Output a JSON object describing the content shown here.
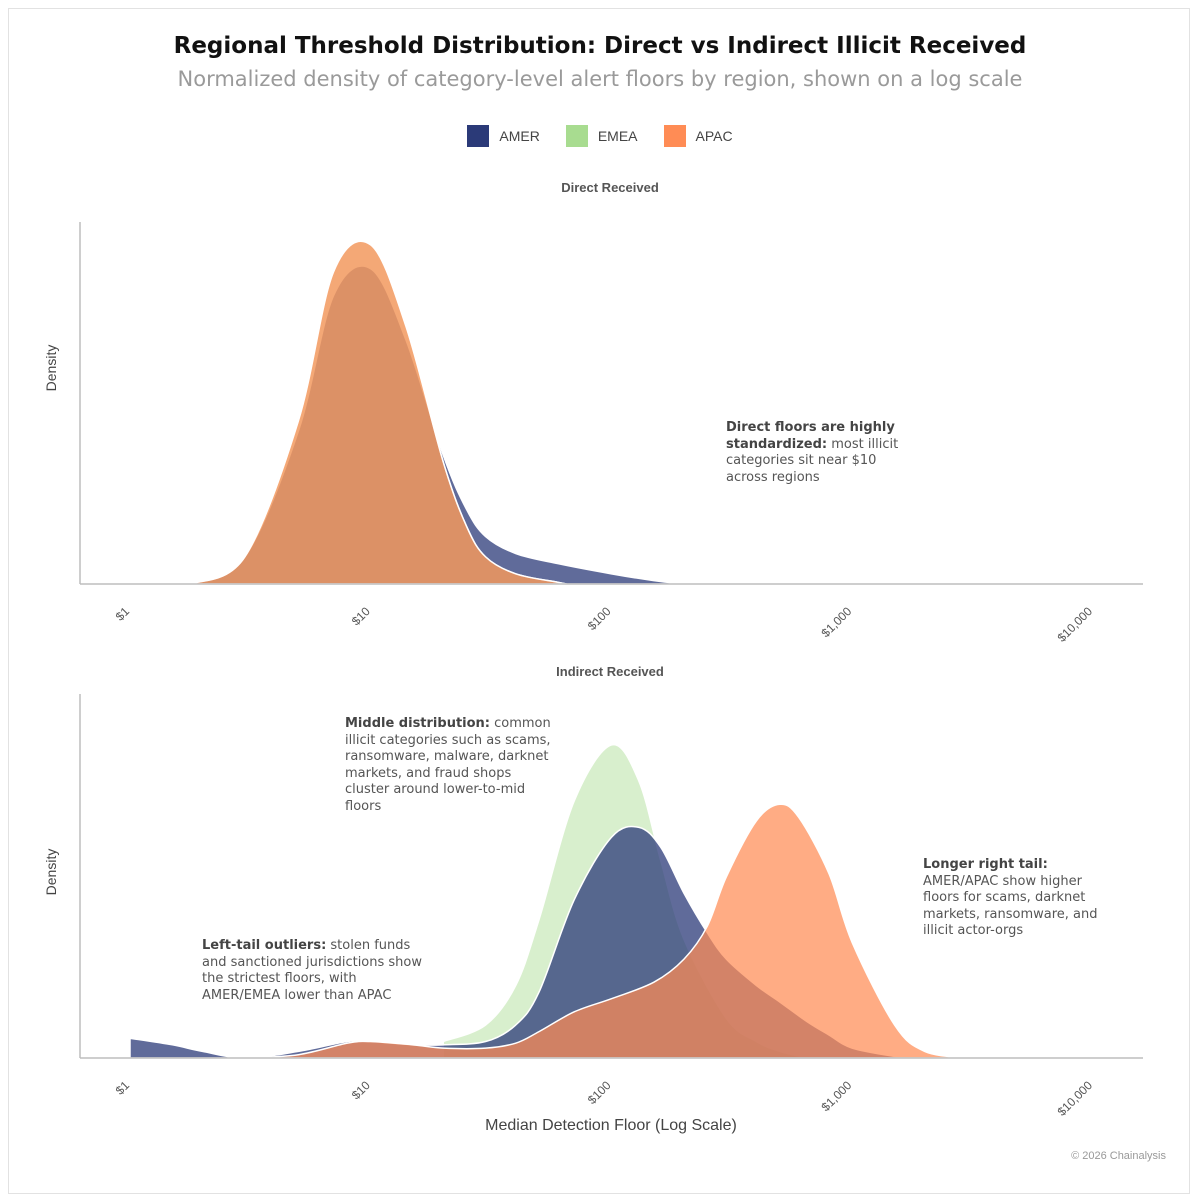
{
  "title": "Regional Threshold Distribution: Direct vs Indirect Illicit Received",
  "subtitle": "Normalized density of category-level alert floors by region, shown on a log scale",
  "legend": [
    {
      "label": "AMER",
      "color": "#2b3a78"
    },
    {
      "label": "EMEA",
      "color": "#a8dc90"
    },
    {
      "label": "APAC",
      "color": "#ff8c55"
    }
  ],
  "footer": "© 2026 Chainalysis",
  "chart_data": [
    {
      "type": "area",
      "title": "Direct Received",
      "xlabel": "",
      "ylabel": "Density",
      "x_scale": "log",
      "xlim": [
        1,
        10000
      ],
      "ylim": [
        0,
        1.05
      ],
      "xticks": [
        1,
        10,
        100,
        1000,
        10000
      ],
      "xtick_labels": [
        "$1",
        "$10",
        "$100",
        "$1,000",
        "$10,000"
      ],
      "series": [
        {
          "name": "AMER",
          "x": [
            1.8,
            3,
            5,
            7,
            10,
            14,
            20,
            25,
            30,
            40,
            60,
            100,
            150,
            200
          ],
          "y": [
            0.0,
            0.08,
            0.45,
            0.85,
            0.93,
            0.72,
            0.38,
            0.22,
            0.14,
            0.09,
            0.06,
            0.03,
            0.01,
            0.0
          ]
        },
        {
          "name": "EMEA",
          "x": [
            1.8,
            3,
            5,
            7,
            10,
            14,
            20,
            25,
            30,
            40,
            60,
            65
          ],
          "y": [
            0.0,
            0.08,
            0.48,
            0.92,
            1.0,
            0.76,
            0.36,
            0.17,
            0.08,
            0.03,
            0.005,
            0.0
          ]
        },
        {
          "name": "APAC",
          "x": [
            1.8,
            3,
            5,
            7,
            10,
            14,
            20,
            25,
            30,
            40,
            60,
            65
          ],
          "y": [
            0.0,
            0.08,
            0.48,
            0.92,
            1.0,
            0.76,
            0.36,
            0.17,
            0.08,
            0.03,
            0.005,
            0.0
          ]
        }
      ],
      "annotations": [
        {
          "bold": "Direct floors are highly standardized:",
          "text": " most illicit categories sit near $10 across regions"
        }
      ]
    },
    {
      "type": "area",
      "title": "Indirect Received",
      "xlabel": "Median Detection Floor (Log Scale)",
      "ylabel": "Density",
      "x_scale": "log",
      "xlim": [
        1,
        10000
      ],
      "ylim": [
        0,
        1.05
      ],
      "xticks": [
        1,
        10,
        100,
        1000,
        10000
      ],
      "xtick_labels": [
        "$1",
        "$10",
        "$100",
        "$1,000",
        "$10,000"
      ],
      "series": [
        {
          "name": "EMEA",
          "x": [
            20,
            30,
            40,
            50,
            70,
            100,
            130,
            160,
            200,
            300,
            400,
            500,
            650
          ],
          "y": [
            0.05,
            0.1,
            0.22,
            0.42,
            0.78,
            0.95,
            0.84,
            0.6,
            0.36,
            0.12,
            0.05,
            0.02,
            0.0
          ]
        },
        {
          "name": "AMER",
          "x": [
            1,
            1.5,
            2,
            3,
            5,
            8,
            10,
            15,
            20,
            30,
            40,
            50,
            70,
            100,
            130,
            160,
            200,
            250,
            300,
            400,
            500,
            650,
            800,
            1000,
            1500,
            1800
          ],
          "y": [
            0.06,
            0.04,
            0.02,
            0.0,
            0.02,
            0.05,
            0.05,
            0.04,
            0.04,
            0.05,
            0.1,
            0.2,
            0.48,
            0.67,
            0.7,
            0.64,
            0.5,
            0.38,
            0.3,
            0.22,
            0.17,
            0.11,
            0.07,
            0.03,
            0.005,
            0.0
          ]
        },
        {
          "name": "APAC",
          "x": [
            3,
            5,
            8,
            10,
            15,
            20,
            30,
            40,
            50,
            70,
            100,
            150,
            200,
            250,
            300,
            400,
            500,
            600,
            800,
            1000,
            1500,
            2000,
            3000
          ],
          "y": [
            0.0,
            0.01,
            0.045,
            0.05,
            0.04,
            0.03,
            0.03,
            0.045,
            0.08,
            0.14,
            0.18,
            0.23,
            0.3,
            0.4,
            0.55,
            0.72,
            0.77,
            0.73,
            0.56,
            0.35,
            0.1,
            0.02,
            0.0
          ]
        }
      ],
      "annotations": [
        {
          "bold": "Middle distribution:",
          "text": " common illicit categories such as scams, ransomware, malware, darknet markets, and fraud shops cluster around lower-to-mid floors"
        },
        {
          "bold": "Left-tail outliers:",
          "text": " stolen funds and sanctioned jurisdictions show the strictest floors, with AMER/EMEA lower than APAC"
        },
        {
          "bold": "Longer right tail:",
          "text": " AMER/APAC show higher floors for scams, darknet markets, ransomware, and illicit actor-orgs"
        }
      ]
    }
  ]
}
